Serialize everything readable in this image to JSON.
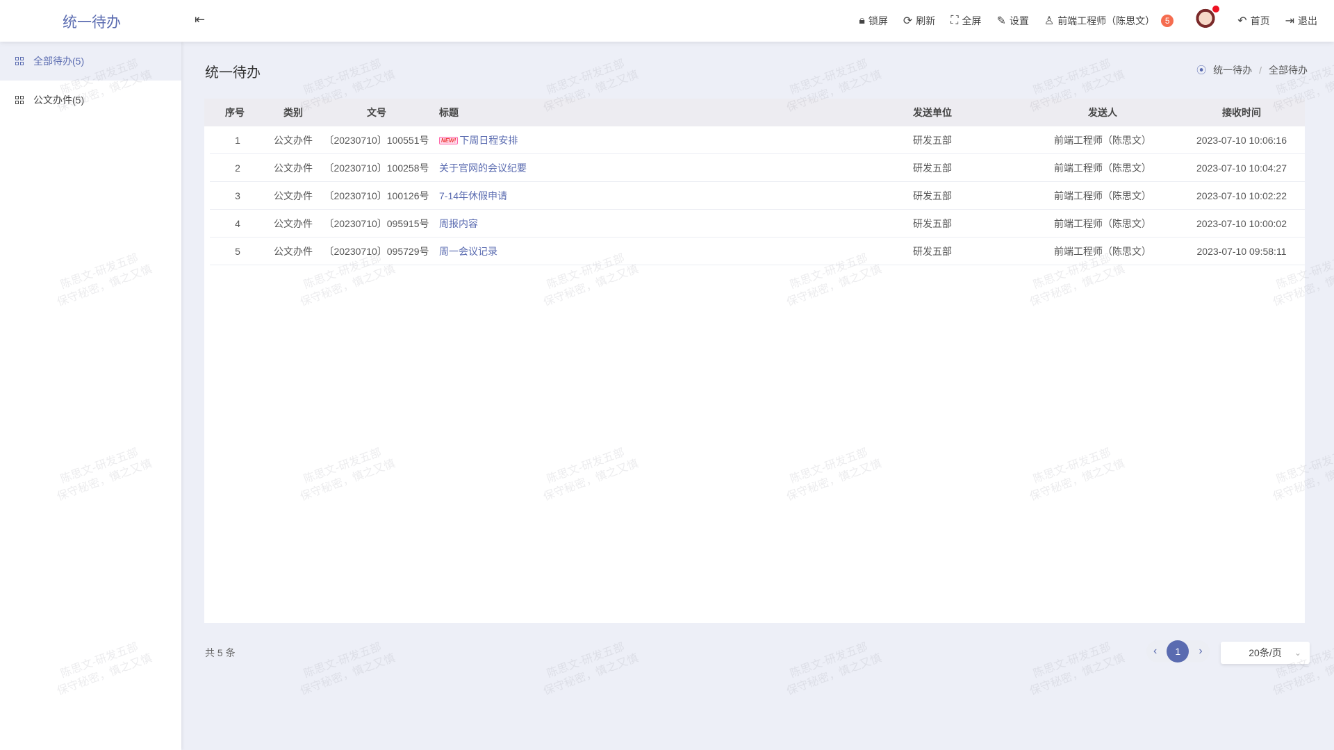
{
  "header": {
    "brand": "统一待办",
    "tools": [
      {
        "icon": "lock-icon",
        "glyph": "🔒︎",
        "label": "锁屏"
      },
      {
        "icon": "refresh-icon",
        "glyph": "⟳",
        "label": "刷新"
      },
      {
        "icon": "fullscreen-icon",
        "glyph": "⛶",
        "label": "全屏"
      },
      {
        "icon": "settings-edit-icon",
        "glyph": "✎",
        "label": "设置"
      },
      {
        "icon": "user-icon",
        "glyph": "♙",
        "label": "前端工程师（陈思文）",
        "badge": "5"
      }
    ],
    "home": "首页",
    "logout": "退出"
  },
  "sidebar": {
    "items": [
      {
        "label": "全部待办(5)",
        "active": true
      },
      {
        "label": "公文办件(5)"
      }
    ]
  },
  "page": {
    "title": "统一待办",
    "breadcrumb": [
      "统一待办",
      "全部待办"
    ]
  },
  "table": {
    "columns": [
      "序号",
      "类别",
      "文号",
      "标题",
      "发送单位",
      "发送人",
      "接收时间"
    ],
    "rows": [
      {
        "no": "1",
        "type": "公文办件",
        "doc": "〔20230710〕100551号",
        "title": "下周日程安排",
        "isNew": true,
        "unit": "研发五部",
        "sender": "前端工程师（陈思文）",
        "time": "2023-07-10 10:06:16"
      },
      {
        "no": "2",
        "type": "公文办件",
        "doc": "〔20230710〕100258号",
        "title": "关于官网的会议纪要",
        "unit": "研发五部",
        "sender": "前端工程师（陈思文）",
        "time": "2023-07-10 10:04:27"
      },
      {
        "no": "3",
        "type": "公文办件",
        "doc": "〔20230710〕100126号",
        "title": "7-14年休假申请",
        "unit": "研发五部",
        "sender": "前端工程师（陈思文）",
        "time": "2023-07-10 10:02:22"
      },
      {
        "no": "4",
        "type": "公文办件",
        "doc": "〔20230710〕095915号",
        "title": "周报内容",
        "unit": "研发五部",
        "sender": "前端工程师（陈思文）",
        "time": "2023-07-10 10:00:02"
      },
      {
        "no": "5",
        "type": "公文办件",
        "doc": "〔20230710〕095729号",
        "title": "周一会议记录",
        "unit": "研发五部",
        "sender": "前端工程师（陈思文）",
        "time": "2023-07-10 09:58:11"
      }
    ],
    "new_tag": "NEW!"
  },
  "footer": {
    "total": "共 5 条",
    "current_page": "1",
    "page_size": "20条/页"
  },
  "watermark": {
    "line1": "陈思文-研发五部",
    "line2": "保守秘密，慎之又慎"
  },
  "colors": {
    "accent": "#5a6bb0",
    "badge": "#f56c4f",
    "background": "#edeff7"
  }
}
